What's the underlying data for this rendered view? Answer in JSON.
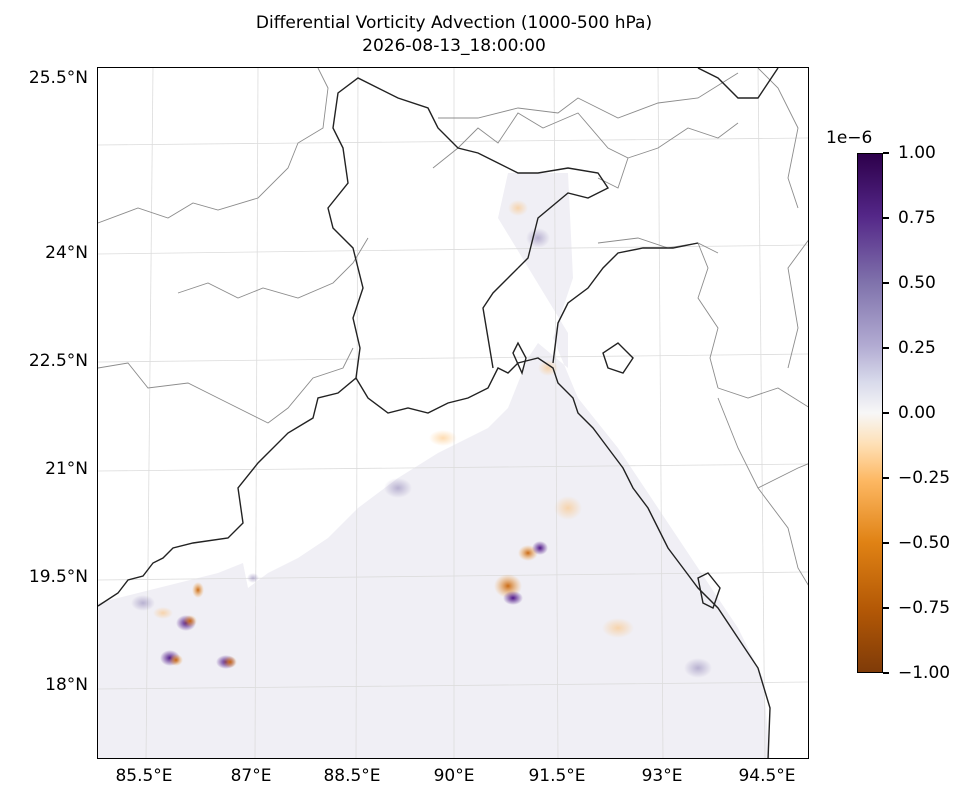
{
  "figure": {
    "title_line1": "Differential Vorticity Advection (1000-500 hPa)",
    "title_line2": "2026-08-13_18:00:00"
  },
  "map": {
    "lat_labels": [
      "25.5°N",
      "24°N",
      "22.5°N",
      "21°N",
      "19.5°N",
      "18°N"
    ],
    "lon_labels": [
      "85.5°E",
      "87°E",
      "88.5°E",
      "90°E",
      "91.5°E",
      "93°E",
      "94.5°E"
    ],
    "colors": {
      "coastline": "#222222",
      "borders": "#8c8c8c",
      "gridlines": "#d9d9d9",
      "ocean_field_base": "#f2f2f6",
      "positive": "#3f007d",
      "negative": "#b35806"
    }
  },
  "colorbar": {
    "exponent_label": "1e−6",
    "tick_labels": [
      "1.00",
      "0.75",
      "0.50",
      "0.25",
      "0.00",
      "−0.25",
      "−0.50",
      "−0.75",
      "−1.00"
    ],
    "colormap": "PuOr",
    "range": [
      -1.0,
      1.0
    ]
  }
}
